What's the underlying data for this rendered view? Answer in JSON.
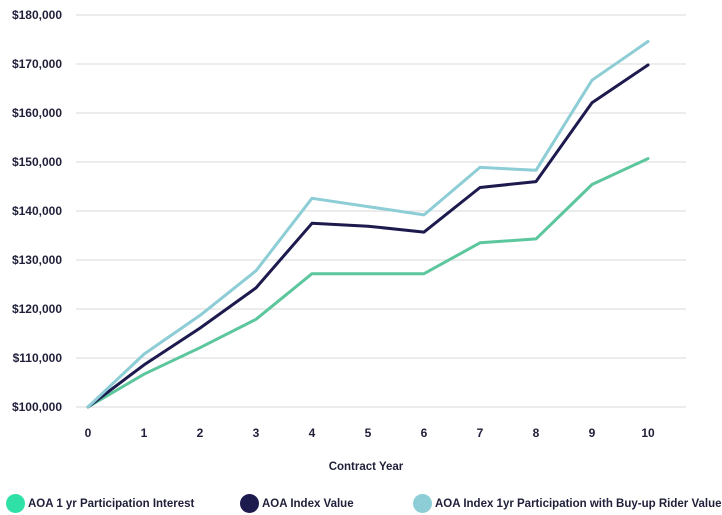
{
  "chart_data": {
    "type": "line",
    "title": "",
    "xlabel": "Contract Year",
    "ylabel": "",
    "x": [
      0,
      1,
      2,
      3,
      4,
      5,
      6,
      7,
      8,
      9,
      10
    ],
    "x_tick_labels": [
      "0",
      "1",
      "2",
      "3",
      "4",
      "5",
      "6",
      "7",
      "8",
      "9",
      "10"
    ],
    "y_tick_labels": [
      "$100,000",
      "$110,000",
      "$120,000",
      "$130,000",
      "$140,000",
      "$150,000",
      "$160,000",
      "$170,000",
      "$180,000"
    ],
    "ylim": [
      100000,
      180000
    ],
    "grid": "horizontal",
    "legend_position": "bottom",
    "series": [
      {
        "name": "AOA 1 yr Participation Interest",
        "color": "#5cc69c",
        "values": [
          100000,
          106700,
          112100,
          117900,
          127200,
          127200,
          127200,
          133500,
          134300,
          145400,
          150700
        ]
      },
      {
        "name": "AOA Index Value",
        "color": "#1d1a4e",
        "values": [
          100000,
          108600,
          116100,
          124300,
          137500,
          136900,
          135700,
          144800,
          146000,
          162100,
          169800
        ]
      },
      {
        "name": "AOA Index 1yr Participation with Buy-up Rider Value",
        "color": "#8dcdd5",
        "values": [
          100000,
          110800,
          118700,
          127800,
          142600,
          140900,
          139200,
          148900,
          148300,
          166700,
          174600
        ]
      }
    ]
  }
}
